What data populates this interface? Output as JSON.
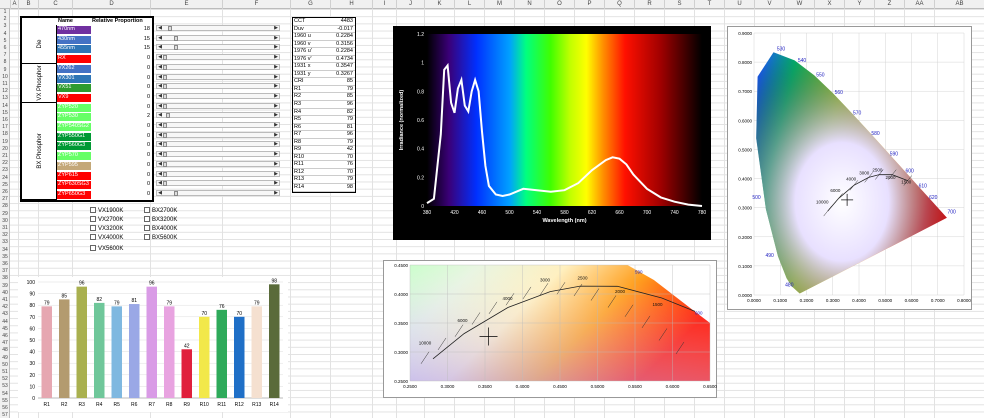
{
  "sheet": {
    "columns": [
      "A",
      "B",
      "C",
      "D",
      "E",
      "F",
      "G",
      "H",
      "I",
      "J",
      "K",
      "L",
      "M",
      "N",
      "O",
      "P",
      "Q",
      "R",
      "S",
      "T",
      "U",
      "V",
      "W",
      "X",
      "Y",
      "Z",
      "AA",
      "AB"
    ],
    "rows": [
      "1",
      "2",
      "3",
      "4",
      "5",
      "6",
      "7",
      "8",
      "9",
      "10",
      "11",
      "12",
      "13",
      "14",
      "15",
      "16",
      "17",
      "18",
      "19",
      "20",
      "21",
      "22",
      "23",
      "24",
      "25",
      "26",
      "27",
      "28",
      "29",
      "30",
      "31",
      "32",
      "33",
      "34",
      "35",
      "36",
      "37",
      "38",
      "39",
      "40",
      "41",
      "42",
      "43",
      "44",
      "45",
      "46",
      "47",
      "48",
      "49",
      "50",
      "51",
      "52",
      "53",
      "54",
      "55",
      "56",
      "57"
    ]
  },
  "led_table": {
    "headers": {
      "name": "Name",
      "proportion": "Relative Proportion"
    },
    "groups": [
      "Die",
      "VX Phosphor",
      "BX Phosphor"
    ],
    "rows": [
      {
        "name": "470nm",
        "value": "18",
        "color": "#7030a0"
      },
      {
        "name": "430nm",
        "value": "15",
        "color": "#4472c4"
      },
      {
        "name": "455nm",
        "value": "15",
        "color": "#2e75b6"
      },
      {
        "name": "RX",
        "value": "0",
        "color": "#ff0000"
      },
      {
        "name": "VX262",
        "value": "0",
        "color": "#4472c4"
      },
      {
        "name": "VX301",
        "value": "0",
        "color": "#2e75b6"
      },
      {
        "name": "VX51",
        "value": "0",
        "color": "#2e9b2e"
      },
      {
        "name": "VX9",
        "value": "0",
        "color": "#ff0000"
      },
      {
        "name": "ZYP520",
        "value": "0",
        "color": "#66ff66"
      },
      {
        "name": "ZYP530",
        "value": "2",
        "color": "#66ff66"
      },
      {
        "name": "ZYP540SG2",
        "value": "0",
        "color": "#66ff66"
      },
      {
        "name": "ZYP550G1",
        "value": "0",
        "color": "#009933"
      },
      {
        "name": "ZYP560G3",
        "value": "0",
        "color": "#009933"
      },
      {
        "name": "ZYP570",
        "value": "0",
        "color": "#66ff66"
      },
      {
        "name": "ZYP595",
        "value": "0",
        "color": "#c4a878"
      },
      {
        "name": "ZYP615",
        "value": "0",
        "color": "#ff0000"
      },
      {
        "name": "ZYP630SG3",
        "value": "0",
        "color": "#ff0000"
      },
      {
        "name": "ZYP650G3",
        "value": "0",
        "color": "#ff0000"
      }
    ],
    "slider_fractions": [
      0.05,
      0.1,
      0.1,
      0,
      0,
      0,
      0,
      0,
      0,
      0.03,
      0,
      0,
      0,
      0,
      0,
      0,
      0,
      0.1
    ]
  },
  "metrics": [
    {
      "label": "CCT",
      "value": "4483"
    },
    {
      "label": "Duv",
      "value": "-0.017"
    },
    {
      "label": "1960 u",
      "value": "0.2284"
    },
    {
      "label": "1960 v",
      "value": "0.3156"
    },
    {
      "label": "1976 u'",
      "value": "0.2284"
    },
    {
      "label": "1976 v'",
      "value": "0.4734"
    },
    {
      "label": "1931 x",
      "value": "0.3547"
    },
    {
      "label": "1931 y",
      "value": "0.3267"
    },
    {
      "label": "CRI",
      "value": "85"
    },
    {
      "label": "R1",
      "value": "79"
    },
    {
      "label": "R2",
      "value": "85"
    },
    {
      "label": "R3",
      "value": "96"
    },
    {
      "label": "R4",
      "value": "82"
    },
    {
      "label": "R5",
      "value": "79"
    },
    {
      "label": "R6",
      "value": "81"
    },
    {
      "label": "R7",
      "value": "96"
    },
    {
      "label": "R8",
      "value": "79"
    },
    {
      "label": "R9",
      "value": "42"
    },
    {
      "label": "R10",
      "value": "70"
    },
    {
      "label": "R11",
      "value": "76"
    },
    {
      "label": "R12",
      "value": "70"
    },
    {
      "label": "R13",
      "value": "79"
    },
    {
      "label": "R14",
      "value": "98"
    }
  ],
  "checkboxes": [
    {
      "label": "VX1900K"
    },
    {
      "label": "BX2700K"
    },
    {
      "label": "VX2700K"
    },
    {
      "label": "BX3200K"
    },
    {
      "label": "VX3200K"
    },
    {
      "label": "BX4000K"
    },
    {
      "label": "VX4000K"
    },
    {
      "label": "BX5600K"
    },
    {
      "label": "VX5600K"
    }
  ],
  "colors": {
    "grid": "#e2e2e2",
    "table_border": "#000000",
    "spectrum_line": "#ffffff"
  },
  "chart_data": [
    {
      "type": "bar",
      "categories": [
        "R1",
        "R2",
        "R3",
        "R4",
        "R5",
        "R6",
        "R7",
        "R8",
        "R9",
        "R10",
        "R11",
        "R12",
        "R13",
        "R14"
      ],
      "values": [
        79,
        85,
        96,
        82,
        79,
        81,
        96,
        79,
        42,
        70,
        76,
        70,
        79,
        98
      ],
      "colors": [
        "#e6a7b1",
        "#b39b6f",
        "#a9b04f",
        "#6fc79a",
        "#7fb8e0",
        "#9aa8e6",
        "#d99be6",
        "#e8a3e0",
        "#e0203c",
        "#f2e84a",
        "#2eaa5a",
        "#1f6fc7",
        "#f5e0d0",
        "#5a6b3a"
      ],
      "ylim": [
        0,
        100
      ],
      "yticks": [
        "0",
        "10",
        "20",
        "30",
        "40",
        "50",
        "60",
        "70",
        "80",
        "90",
        "100"
      ]
    },
    {
      "type": "line",
      "xlabel": "Wavelength (nm)",
      "ylabel": "Irradiance (normalized)",
      "xlim": [
        380,
        780
      ],
      "ylim": [
        0,
        1.2
      ],
      "xticks": [
        "380",
        "420",
        "460",
        "500",
        "540",
        "580",
        "620",
        "660",
        "700",
        "740",
        "780"
      ],
      "yticks": [
        "0",
        "0.2",
        "0.4",
        "0.6",
        "0.8",
        "1",
        "1.2"
      ],
      "x": [
        380,
        390,
        400,
        405,
        410,
        415,
        420,
        425,
        430,
        435,
        440,
        445,
        450,
        455,
        460,
        465,
        470,
        480,
        490,
        500,
        520,
        540,
        560,
        580,
        600,
        620,
        640,
        650,
        660,
        670,
        680,
        700,
        720,
        740,
        760,
        780
      ],
      "y": [
        0.02,
        0.05,
        0.5,
        0.95,
        0.98,
        0.72,
        0.65,
        0.82,
        0.88,
        0.7,
        0.66,
        0.8,
        0.88,
        0.8,
        0.52,
        0.28,
        0.14,
        0.08,
        0.07,
        0.08,
        0.12,
        0.11,
        0.1,
        0.11,
        0.16,
        0.25,
        0.32,
        0.34,
        0.33,
        0.29,
        0.22,
        0.12,
        0.06,
        0.03,
        0.01,
        0
      ]
    },
    {
      "type": "scatter",
      "xlim": [
        0,
        0.8
      ],
      "ylim": [
        0,
        0.9
      ],
      "xticks": [
        "0.0000",
        "0.1000",
        "0.2000",
        "0.3000",
        "0.4000",
        "0.5000",
        "0.6000",
        "0.7000",
        "0.8000"
      ],
      "yticks": [
        "0.0000",
        "0.1000",
        "0.2000",
        "0.3000",
        "0.4000",
        "0.5000",
        "0.6000",
        "0.7000",
        "0.8000",
        "0.9000"
      ],
      "locus_labels": [
        "480",
        "490",
        "500",
        "530",
        "540",
        "550",
        "560",
        "570",
        "580",
        "590",
        "600",
        "610",
        "620",
        "700"
      ],
      "cct_labels": [
        "10000",
        "6000",
        "4000",
        "3000",
        "2500",
        "2000",
        "1500"
      ],
      "point": {
        "x": 0.3547,
        "y": 0.3267
      }
    },
    {
      "type": "scatter",
      "xlim": [
        0.25,
        0.65
      ],
      "ylim": [
        0.25,
        0.45
      ],
      "xticks": [
        "0.2500",
        "0.3000",
        "0.3500",
        "0.4000",
        "0.4500",
        "0.5000",
        "0.5500",
        "0.6000",
        "0.6500"
      ],
      "yticks": [
        "0.2500",
        "0.3000",
        "0.3500",
        "0.4000",
        "0.4500"
      ],
      "locus_labels": [
        "590",
        "600"
      ],
      "cct_labels": [
        "10000",
        "6000",
        "4000",
        "3000",
        "2500",
        "2000",
        "1500"
      ],
      "point": {
        "x": 0.3547,
        "y": 0.3267
      }
    }
  ]
}
